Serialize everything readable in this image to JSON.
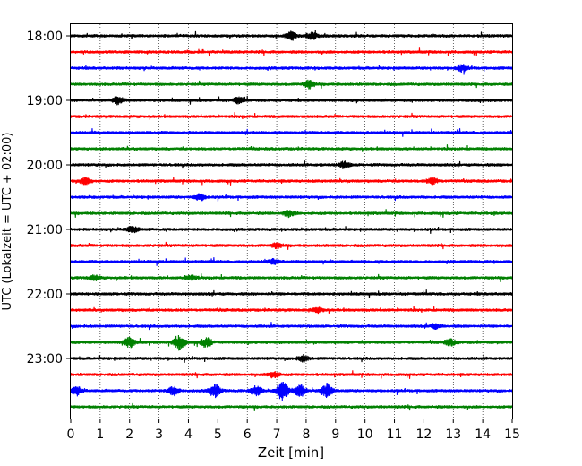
{
  "chart_data": {
    "type": "line",
    "title": "",
    "xlabel": "Zeit  [min]",
    "ylabel": "UTC (Lokalzeit = UTC + 02:00)",
    "xlim": [
      0,
      15
    ],
    "x_ticks": [
      "0",
      "1",
      "2",
      "3",
      "4",
      "5",
      "6",
      "7",
      "8",
      "9",
      "10",
      "11",
      "12",
      "13",
      "14",
      "15"
    ],
    "y_tick_labels": [
      "18:00",
      "19:00",
      "20:00",
      "21:00",
      "22:00",
      "23:00"
    ],
    "vertical_grid": true,
    "grid_style": "dotted",
    "colors": [
      "#000000",
      "#ff0000",
      "#0000ff",
      "#008000"
    ],
    "traces": [
      {
        "label": "18:00",
        "color": "#000000",
        "events": [
          {
            "t": 7.5,
            "amp": 0.5
          },
          {
            "t": 8.2,
            "amp": 0.4
          }
        ]
      },
      {
        "label": "18:15",
        "color": "#ff0000",
        "events": []
      },
      {
        "label": "18:30",
        "color": "#0000ff",
        "events": [
          {
            "t": 13.3,
            "amp": 0.4
          }
        ]
      },
      {
        "label": "18:45",
        "color": "#008000",
        "events": [
          {
            "t": 8.1,
            "amp": 0.5
          }
        ]
      },
      {
        "label": "19:00",
        "color": "#000000",
        "events": [
          {
            "t": 1.6,
            "amp": 0.5
          },
          {
            "t": 5.7,
            "amp": 0.4
          }
        ]
      },
      {
        "label": "19:15",
        "color": "#ff0000",
        "events": []
      },
      {
        "label": "19:30",
        "color": "#0000ff",
        "events": []
      },
      {
        "label": "19:45",
        "color": "#008000",
        "events": []
      },
      {
        "label": "20:00",
        "color": "#000000",
        "events": [
          {
            "t": 9.3,
            "amp": 0.4
          }
        ]
      },
      {
        "label": "20:15",
        "color": "#ff0000",
        "events": [
          {
            "t": 0.5,
            "amp": 0.4
          },
          {
            "t": 12.3,
            "amp": 0.4
          }
        ]
      },
      {
        "label": "20:30",
        "color": "#0000ff",
        "events": [
          {
            "t": 4.4,
            "amp": 0.4
          }
        ]
      },
      {
        "label": "20:45",
        "color": "#008000",
        "events": [
          {
            "t": 7.4,
            "amp": 0.4
          }
        ]
      },
      {
        "label": "21:00",
        "color": "#000000",
        "events": [
          {
            "t": 2.1,
            "amp": 0.4
          }
        ]
      },
      {
        "label": "21:15",
        "color": "#ff0000",
        "events": [
          {
            "t": 7.0,
            "amp": 0.3
          }
        ]
      },
      {
        "label": "21:30",
        "color": "#0000ff",
        "events": [
          {
            "t": 6.9,
            "amp": 0.3
          }
        ]
      },
      {
        "label": "21:45",
        "color": "#008000",
        "events": [
          {
            "t": 0.8,
            "amp": 0.3
          },
          {
            "t": 4.1,
            "amp": 0.3
          }
        ]
      },
      {
        "label": "22:00",
        "color": "#000000",
        "events": []
      },
      {
        "label": "22:15",
        "color": "#ff0000",
        "events": [
          {
            "t": 8.4,
            "amp": 0.3
          }
        ]
      },
      {
        "label": "22:30",
        "color": "#0000ff",
        "events": [
          {
            "t": 12.4,
            "amp": 0.3
          }
        ]
      },
      {
        "label": "22:45",
        "color": "#008000",
        "events": [
          {
            "t": 2.0,
            "amp": 0.6
          },
          {
            "t": 3.7,
            "amp": 1.0
          },
          {
            "t": 4.6,
            "amp": 0.6
          },
          {
            "t": 12.9,
            "amp": 0.4
          }
        ]
      },
      {
        "label": "23:00",
        "color": "#000000",
        "events": [
          {
            "t": 7.9,
            "amp": 0.4
          }
        ]
      },
      {
        "label": "23:15",
        "color": "#ff0000",
        "events": [
          {
            "t": 6.9,
            "amp": 0.4
          }
        ]
      },
      {
        "label": "23:30",
        "color": "#0000ff",
        "events": [
          {
            "t": 0.2,
            "amp": 0.5
          },
          {
            "t": 3.5,
            "amp": 0.6
          },
          {
            "t": 4.9,
            "amp": 0.8
          },
          {
            "t": 6.3,
            "amp": 0.6
          },
          {
            "t": 7.2,
            "amp": 1.3
          },
          {
            "t": 7.8,
            "amp": 0.8
          },
          {
            "t": 8.7,
            "amp": 0.9
          }
        ]
      },
      {
        "label": "23:45",
        "color": "#008000",
        "events": []
      }
    ]
  }
}
